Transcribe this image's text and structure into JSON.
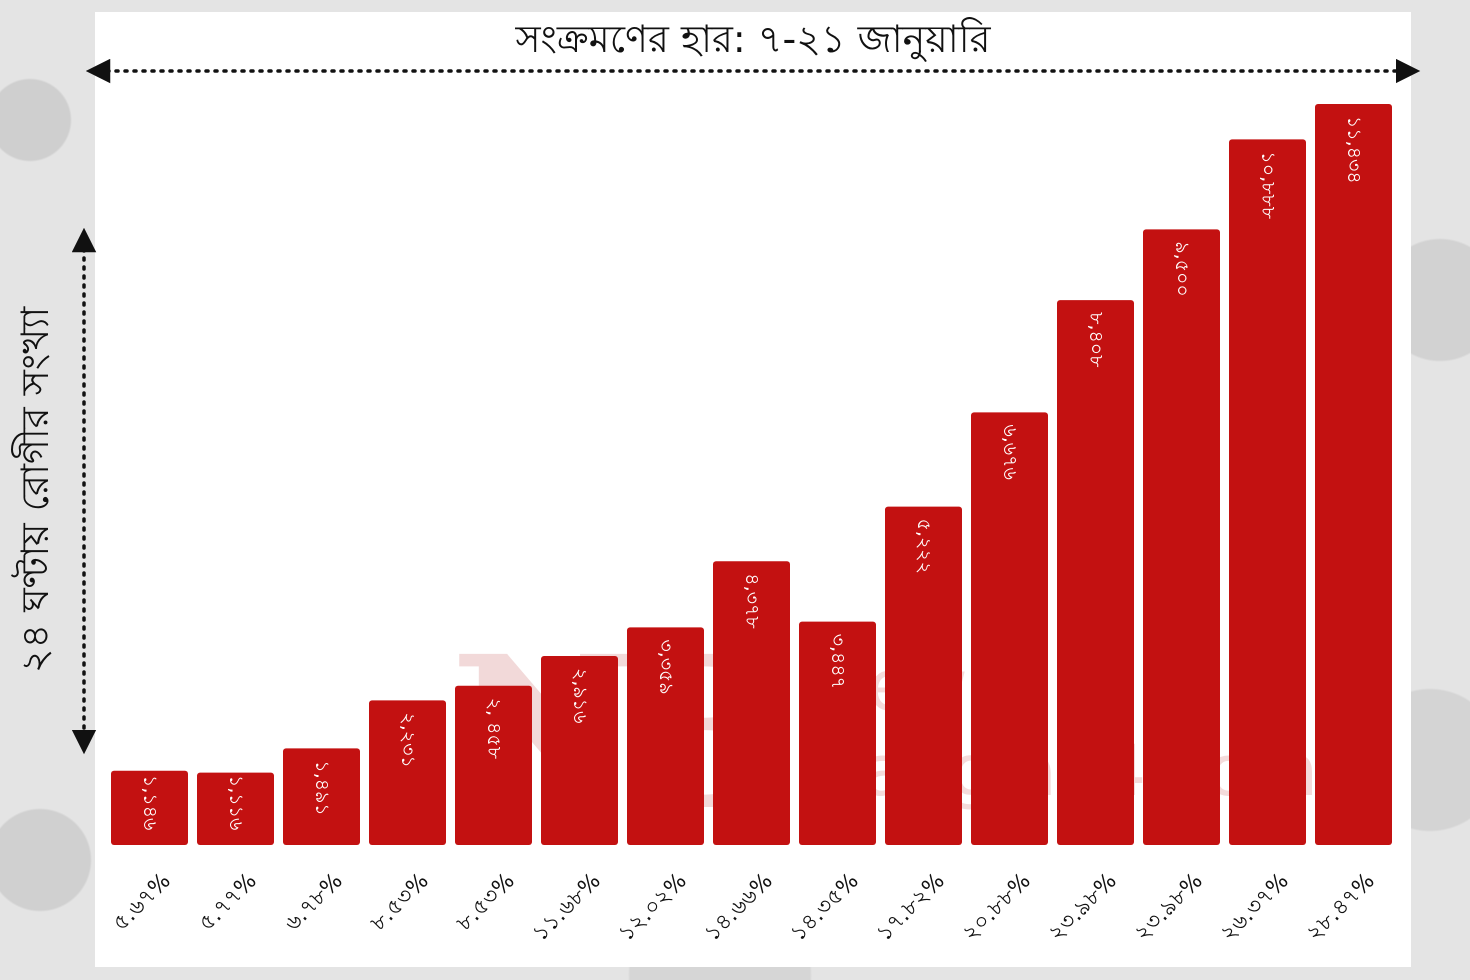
{
  "chart_data": {
    "type": "bar",
    "title": "সংক্রমণের হার: ৭-২১ জানুয়ারি",
    "ylabel": "২৪ ঘণ্টায় রোগীর সংখ্যা",
    "xlabel": "",
    "categories": [
      "৫.৬৭%",
      "৫.৭৭%",
      "৬.৭৮%",
      "৮.৫৩%",
      "৮.৫৩%",
      "১১.৬৮%",
      "১২.০২%",
      "১৪.৬৬%",
      "১৪.৩৫%",
      "১৭.৮২%",
      "২০.৮৮%",
      "২৩.৯৮%",
      "২৩.৯৮%",
      "২৬.৩৭%",
      "২৮.৪৭%"
    ],
    "value_labels": [
      "১,১৪৬",
      "১,১১৬",
      "১,৪৯১",
      "২,২৩১",
      "২, ৪৫৮",
      "২,৯১৬",
      "৩,৩৫৯",
      "৪,৩৭৮",
      "৩,৪৪৭",
      "৫,২২২",
      "৬,৬৭৬",
      "৮,৪০৮",
      "৯,৫০০",
      "১০,৮৮৮",
      "১১,৪৩৪"
    ],
    "values": [
      1146,
      1116,
      1491,
      2231,
      2458,
      2916,
      3359,
      4378,
      3447,
      5222,
      6676,
      8408,
      9500,
      10888,
      11434
    ],
    "ylim": [
      0,
      11434
    ],
    "bar_color": "#c31111"
  },
  "watermark": {
    "logo": "NB",
    "line1": "News",
    "line2": "Bangla24.com"
  }
}
